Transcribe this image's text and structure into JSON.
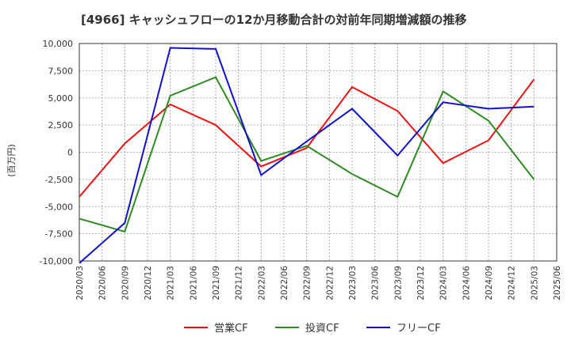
{
  "chart_data": {
    "type": "line",
    "title": "[4966]  キャッシュフローの12か月移動合計の対前年同期増減額の推移",
    "ylabel": "(百万円)",
    "xlabel": "",
    "ylim": [
      -10000,
      10000
    ],
    "y_ticks": [
      10000,
      7500,
      5000,
      2500,
      0,
      -2500,
      -5000,
      -7500,
      -10000
    ],
    "y_tick_labels": [
      "10,000",
      "7,500",
      "5,000",
      "2,500",
      "0",
      "-2,500",
      "-5,000",
      "-7,500",
      "-10,000"
    ],
    "categories": [
      "2020/03",
      "2020/06",
      "2020/09",
      "2020/12",
      "2021/03",
      "2021/06",
      "2021/09",
      "2021/12",
      "2022/03",
      "2022/06",
      "2022/09",
      "2022/12",
      "2023/03",
      "2023/06",
      "2023/09",
      "2023/12",
      "2024/03",
      "2024/06",
      "2024/09",
      "2024/12",
      "2025/03",
      "2025/06"
    ],
    "grid": true,
    "legend_position": "bottom",
    "series": [
      {
        "name": "営業CF",
        "color": "#ee1111",
        "values": [
          -4100,
          null,
          800,
          null,
          4400,
          null,
          2500,
          null,
          -1300,
          null,
          400,
          null,
          6000,
          null,
          3800,
          null,
          -1000,
          null,
          1100,
          null,
          6700,
          null
        ]
      },
      {
        "name": "投資CF",
        "color": "#2e8b22",
        "values": [
          -6100,
          null,
          -7300,
          null,
          5200,
          null,
          6900,
          null,
          -800,
          null,
          600,
          null,
          -2000,
          null,
          -4100,
          null,
          5600,
          null,
          2900,
          null,
          -2500,
          null
        ]
      },
      {
        "name": "フリーCF",
        "color": "#1111cc",
        "values": [
          -10200,
          null,
          -6500,
          null,
          9600,
          null,
          9500,
          null,
          -2100,
          null,
          1000,
          null,
          4000,
          null,
          -300,
          null,
          4600,
          null,
          4000,
          null,
          4200,
          null
        ]
      }
    ]
  }
}
